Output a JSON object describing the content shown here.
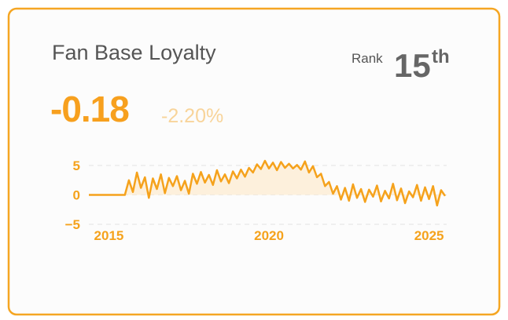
{
  "card": {
    "title": "Fan Base Loyalty",
    "rank_label": "Rank",
    "rank_number": "15",
    "rank_suffix": "th",
    "value": "-0.18",
    "change": "-2.20%"
  },
  "chart_data": {
    "type": "line",
    "color": "#f5a21c",
    "area_color": "#fdf0dc",
    "x": [
      2014.375,
      2014.5,
      2014.625,
      2014.75,
      2014.875,
      2015,
      2015.125,
      2015.25,
      2015.375,
      2015.5,
      2015.625,
      2015.75,
      2015.875,
      2016,
      2016.125,
      2016.25,
      2016.375,
      2016.5,
      2016.625,
      2016.75,
      2016.875,
      2017,
      2017.125,
      2017.25,
      2017.375,
      2017.5,
      2017.625,
      2017.75,
      2017.875,
      2018,
      2018.125,
      2018.25,
      2018.375,
      2018.5,
      2018.625,
      2018.75,
      2018.875,
      2019,
      2019.125,
      2019.25,
      2019.375,
      2019.5,
      2019.625,
      2019.75,
      2019.875,
      2020,
      2020.125,
      2020.25,
      2020.375,
      2020.5,
      2020.625,
      2020.75,
      2020.875,
      2021,
      2021.125,
      2021.25,
      2021.375,
      2021.5,
      2021.625,
      2021.75,
      2021.875,
      2022,
      2022.125,
      2022.25,
      2022.375,
      2022.5,
      2022.625,
      2022.75,
      2022.875,
      2023,
      2023.125,
      2023.25,
      2023.375,
      2023.5,
      2023.625,
      2023.75,
      2023.875,
      2024,
      2024.125,
      2024.25,
      2024.375,
      2024.5,
      2024.625,
      2024.75,
      2024.875,
      2025,
      2025.125,
      2025.25,
      2025.375,
      2025.5
    ],
    "values": [
      0,
      0,
      0,
      0,
      0,
      0,
      0,
      0,
      0,
      0,
      2.5,
      0.5,
      3.8,
      1.2,
      3.0,
      -0.5,
      2.8,
      1.0,
      3.5,
      0.3,
      2.9,
      1.5,
      3.2,
      0.8,
      2.4,
      0.2,
      3.6,
      1.9,
      3.9,
      2.1,
      3.4,
      1.7,
      4.2,
      2.3,
      3.5,
      2.0,
      4.0,
      2.8,
      4.3,
      3.1,
      4.6,
      3.8,
      5.2,
      4.4,
      5.8,
      4.5,
      5.5,
      4.2,
      5.6,
      4.6,
      5.3,
      4.5,
      5.1,
      4.3,
      5.7,
      3.8,
      4.9,
      3.0,
      3.6,
      1.5,
      2.2,
      0.2,
      1.5,
      -0.8,
      1.2,
      -1.0,
      1.8,
      -0.5,
      1.0,
      -1.2,
      0.9,
      -0.3,
      1.6,
      -1.1,
      0.7,
      -0.6,
      1.9,
      -0.9,
      1.1,
      -1.4,
      0.6,
      -0.4,
      1.7,
      -1.0,
      1.3,
      -0.7,
      1.5,
      -1.8,
      0.8,
      -0.18
    ],
    "xlim": [
      2014.375,
      2025.55
    ],
    "xticks": [
      2015,
      2020,
      2025
    ],
    "ylim": [
      -5,
      5
    ],
    "yticks": [
      5,
      0,
      {
        "value": -5,
        "label": "−5"
      }
    ],
    "grid": true
  }
}
